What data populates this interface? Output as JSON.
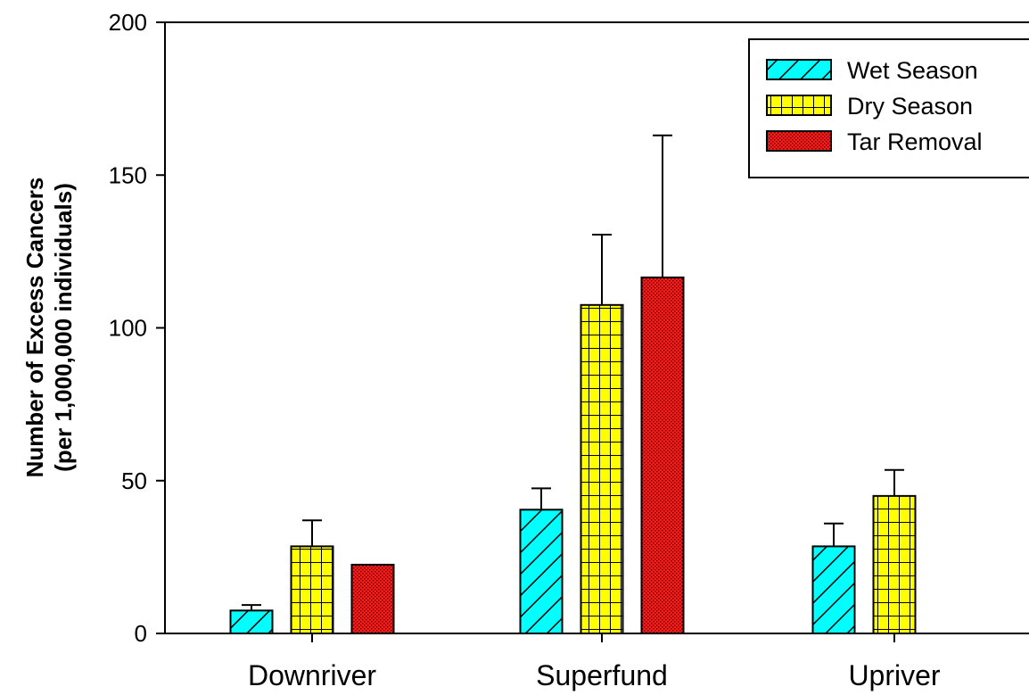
{
  "chart_data": {
    "type": "bar",
    "title": "",
    "xlabel": "",
    "ylabel": "Number of Excess Cancers",
    "ylabel_line2": "(per 1,000,000 individuals)",
    "categories": [
      "Downriver",
      "Superfund",
      "Upriver"
    ],
    "ylim": [
      0,
      200
    ],
    "yticks": [
      0,
      50,
      100,
      150,
      200
    ],
    "grid": false,
    "legend_position": "top-right",
    "series": [
      {
        "name": "Wet Season",
        "color": "#00FFFF",
        "pattern": "diagonal-hatch",
        "values": [
          7.5,
          40.5,
          28.5
        ],
        "errors": [
          1.8,
          7.0,
          7.5
        ]
      },
      {
        "name": "Dry Season",
        "color": "#FFFF00",
        "pattern": "grid",
        "values": [
          28.5,
          107.5,
          45
        ],
        "errors": [
          8.5,
          23,
          8.5
        ]
      },
      {
        "name": "Tar Removal",
        "color": "#FF0000",
        "pattern": "dots",
        "values": [
          22.5,
          116.5,
          null
        ],
        "errors": [
          0,
          46.5,
          null
        ]
      }
    ]
  }
}
